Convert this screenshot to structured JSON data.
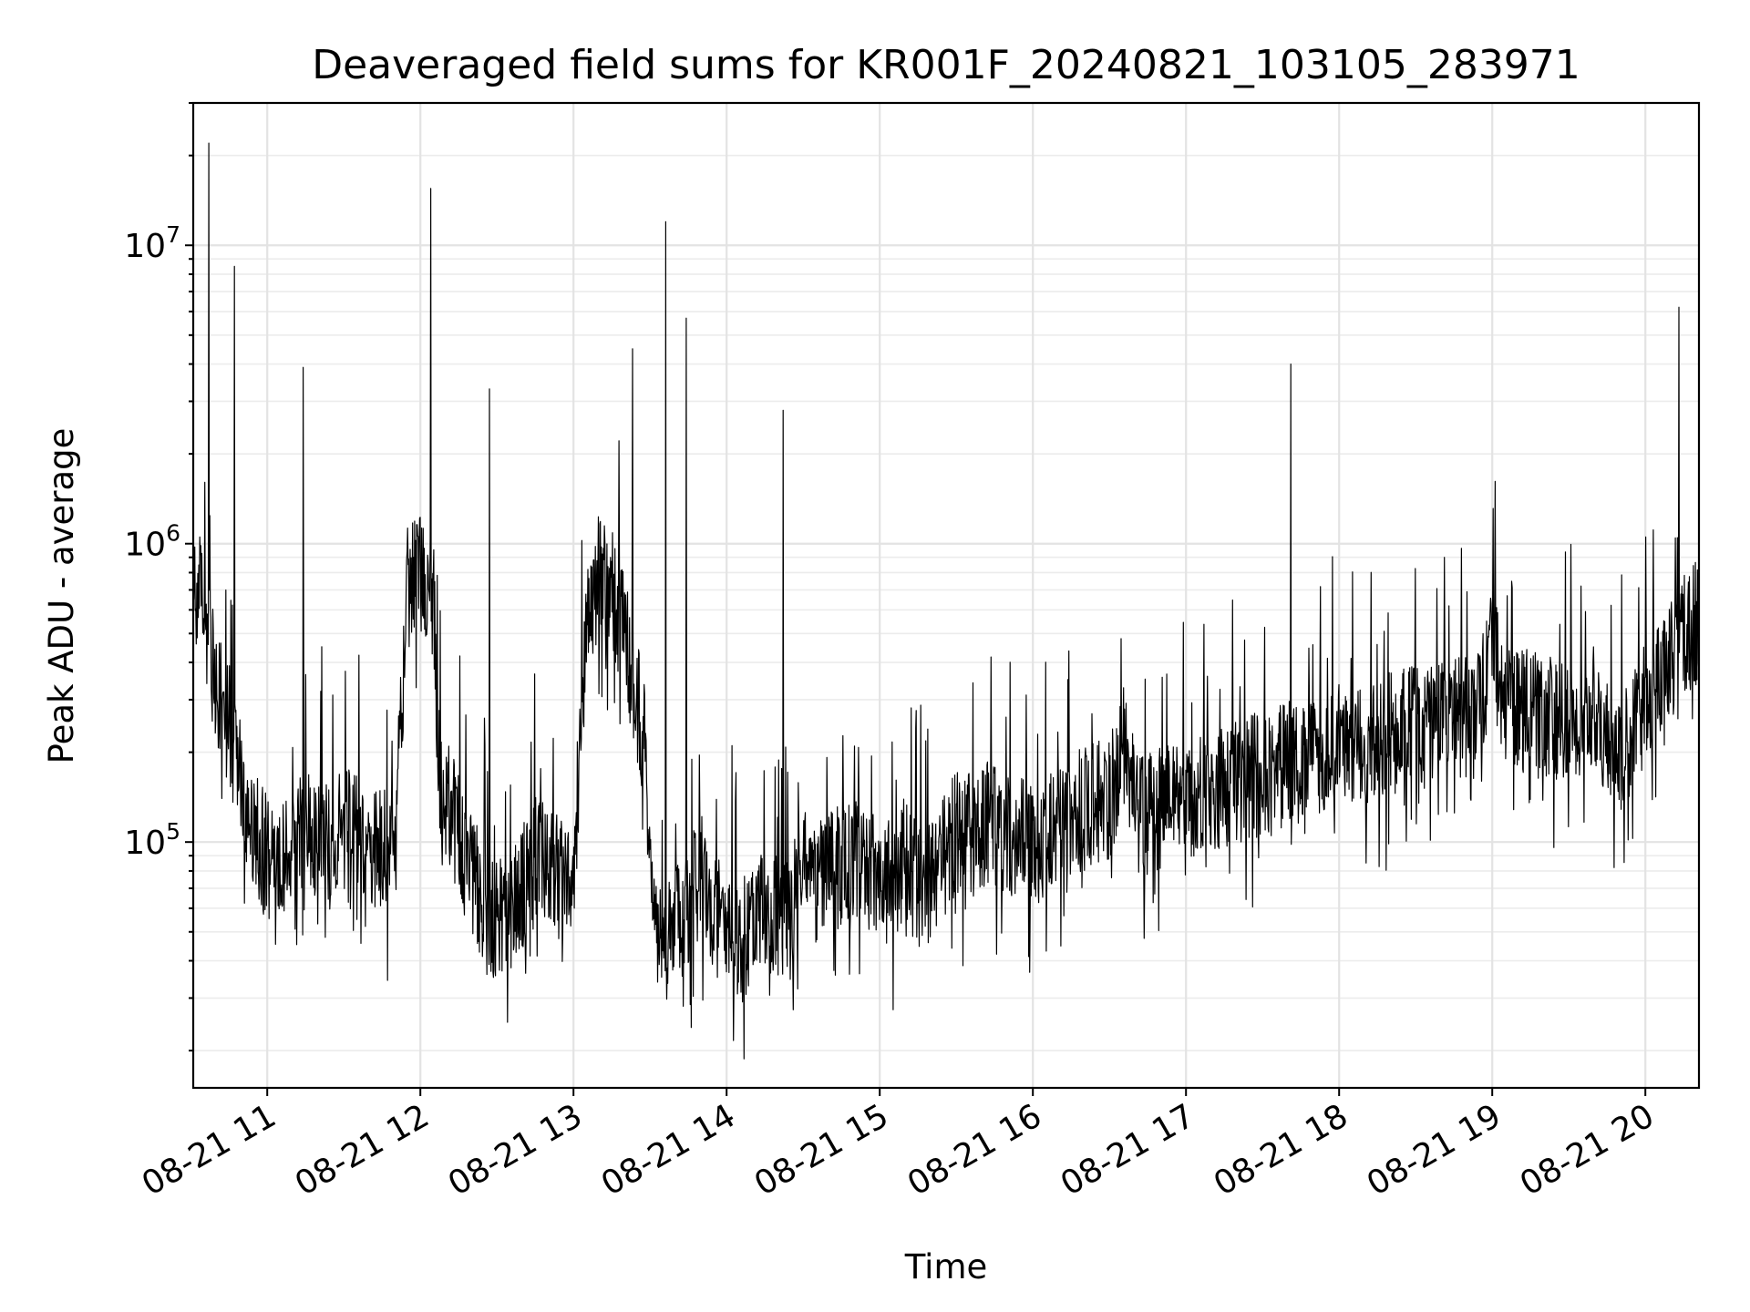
{
  "chart_data": {
    "type": "line",
    "title": "Deaveraged field sums for KR001F_20240821_103105_283971",
    "xlabel": "Time",
    "ylabel": "Peak ADU - average",
    "x_tick_labels": [
      "08-21 11",
      "08-21 12",
      "08-21 13",
      "08-21 14",
      "08-21 15",
      "08-21 16",
      "08-21 17",
      "08-21 18",
      "08-21 19",
      "08-21 20"
    ],
    "x_ticks": [
      "2024-08-21 11:00",
      "2024-08-21 12:00",
      "2024-08-21 13:00",
      "2024-08-21 14:00",
      "2024-08-21 15:00",
      "2024-08-21 16:00",
      "2024-08-21 17:00",
      "2024-08-21 18:00",
      "2024-08-21 19:00",
      "2024-08-21 20:00"
    ],
    "xlim": [
      "2024-08-21 10:31",
      "2024-08-21 20:21"
    ],
    "yscale": "log",
    "y_ticks": [
      100000,
      1000000,
      10000000
    ],
    "y_tick_labels": [
      {
        "base": "10",
        "exp": "5"
      },
      {
        "base": "10",
        "exp": "6"
      },
      {
        "base": "10",
        "exp": "7"
      }
    ],
    "ylim": [
      15000,
      30000000
    ],
    "grid": "both (major and minor)",
    "line_color": "#000000",
    "series": [
      {
        "x": [
          "2024-08-21 10:31",
          "2024-08-21 10:35",
          "2024-08-21 10:37",
          "2024-08-21 10:41",
          "2024-08-21 10:45",
          "2024-08-21 10:48",
          "2024-08-21 10:51",
          "2024-08-21 10:55",
          "2024-08-21 11:00",
          "2024-08-21 11:05",
          "2024-08-21 11:10",
          "2024-08-21 11:15",
          "2024-08-21 11:20",
          "2024-08-21 11:25",
          "2024-08-21 11:30",
          "2024-08-21 11:35",
          "2024-08-21 11:40",
          "2024-08-21 11:45",
          "2024-08-21 11:50",
          "2024-08-21 11:55",
          "2024-08-21 12:00",
          "2024-08-21 12:04",
          "2024-08-21 12:08",
          "2024-08-21 12:15",
          "2024-08-21 12:20",
          "2024-08-21 12:25",
          "2024-08-21 12:30",
          "2024-08-21 12:35",
          "2024-08-21 12:40",
          "2024-08-21 12:45",
          "2024-08-21 12:50",
          "2024-08-21 12:55",
          "2024-08-21 13:00",
          "2024-08-21 13:05",
          "2024-08-21 13:10",
          "2024-08-21 13:15",
          "2024-08-21 13:20",
          "2024-08-21 13:25",
          "2024-08-21 13:28",
          "2024-08-21 13:32",
          "2024-08-21 13:35",
          "2024-08-21 13:40",
          "2024-08-21 13:45",
          "2024-08-21 13:50",
          "2024-08-21 13:55",
          "2024-08-21 14:00",
          "2024-08-21 14:05",
          "2024-08-21 14:09",
          "2024-08-21 14:15",
          "2024-08-21 14:20",
          "2024-08-21 14:25",
          "2024-08-21 14:30",
          "2024-08-21 14:35",
          "2024-08-21 14:40",
          "2024-08-21 14:45",
          "2024-08-21 14:50",
          "2024-08-21 14:55",
          "2024-08-21 15:00",
          "2024-08-21 15:05",
          "2024-08-21 15:10",
          "2024-08-21 15:15",
          "2024-08-21 15:20",
          "2024-08-21 15:25",
          "2024-08-21 15:30",
          "2024-08-21 15:35",
          "2024-08-21 15:40",
          "2024-08-21 15:45",
          "2024-08-21 15:50",
          "2024-08-21 15:55",
          "2024-08-21 16:00",
          "2024-08-21 16:10",
          "2024-08-21 16:20",
          "2024-08-21 16:30",
          "2024-08-21 16:36",
          "2024-08-21 16:42",
          "2024-08-21 16:50",
          "2024-08-21 17:00",
          "2024-08-21 17:10",
          "2024-08-21 17:20",
          "2024-08-21 17:30",
          "2024-08-21 17:38",
          "2024-08-21 17:45",
          "2024-08-21 17:50",
          "2024-08-21 18:00",
          "2024-08-21 18:10",
          "2024-08-21 18:20",
          "2024-08-21 18:30",
          "2024-08-21 18:40",
          "2024-08-21 18:50",
          "2024-08-21 18:55",
          "2024-08-21 19:00",
          "2024-08-21 19:05",
          "2024-08-21 19:10",
          "2024-08-21 19:20",
          "2024-08-21 19:30",
          "2024-08-21 19:40",
          "2024-08-21 19:45",
          "2024-08-21 19:50",
          "2024-08-21 19:55",
          "2024-08-21 20:00",
          "2024-08-21 20:05",
          "2024-08-21 20:10",
          "2024-08-21 20:15",
          "2024-08-21 20:21"
        ],
        "y": [
          800000,
          600000,
          450000,
          300000,
          250000,
          180000,
          140000,
          110000,
          90000,
          85000,
          100000,
          110000,
          105000,
          95000,
          110000,
          105000,
          100000,
          95000,
          90000,
          700000,
          900000,
          700000,
          150000,
          110000,
          80000,
          60000,
          55000,
          60000,
          70000,
          90000,
          80000,
          75000,
          80000,
          500000,
          800000,
          700000,
          500000,
          300000,
          200000,
          50000,
          45000,
          50000,
          60000,
          80000,
          60000,
          50000,
          45000,
          50000,
          60000,
          55000,
          60000,
          90000,
          75000,
          85000,
          80000,
          90000,
          85000,
          80000,
          75000,
          90000,
          70000,
          75000,
          90000,
          110000,
          105000,
          110000,
          120000,
          105000,
          110000,
          100000,
          110000,
          130000,
          140000,
          220000,
          120000,
          130000,
          140000,
          150000,
          160000,
          170000,
          180000,
          190000,
          200000,
          210000,
          200000,
          230000,
          240000,
          250000,
          260000,
          280000,
          450000,
          300000,
          280000,
          260000,
          250000,
          280000,
          220000,
          200000,
          220000,
          300000,
          350000,
          420000,
          500000,
          550000
        ],
        "spikes": [
          {
            "x": "2024-08-21 10:37",
            "y": 22000000
          },
          {
            "x": "2024-08-21 10:47",
            "y": 8500000
          },
          {
            "x": "2024-08-21 11:14",
            "y": 3900000
          },
          {
            "x": "2024-08-21 12:04",
            "y": 15500000
          },
          {
            "x": "2024-08-21 12:27",
            "y": 3300000
          },
          {
            "x": "2024-08-21 13:23",
            "y": 4500000
          },
          {
            "x": "2024-08-21 13:36",
            "y": 12000000
          },
          {
            "x": "2024-08-21 13:44",
            "y": 5700000
          },
          {
            "x": "2024-08-21 14:22",
            "y": 2800000
          },
          {
            "x": "2024-08-21 17:41",
            "y": 4000000
          },
          {
            "x": "2024-08-21 20:13",
            "y": 6200000
          }
        ]
      }
    ]
  }
}
